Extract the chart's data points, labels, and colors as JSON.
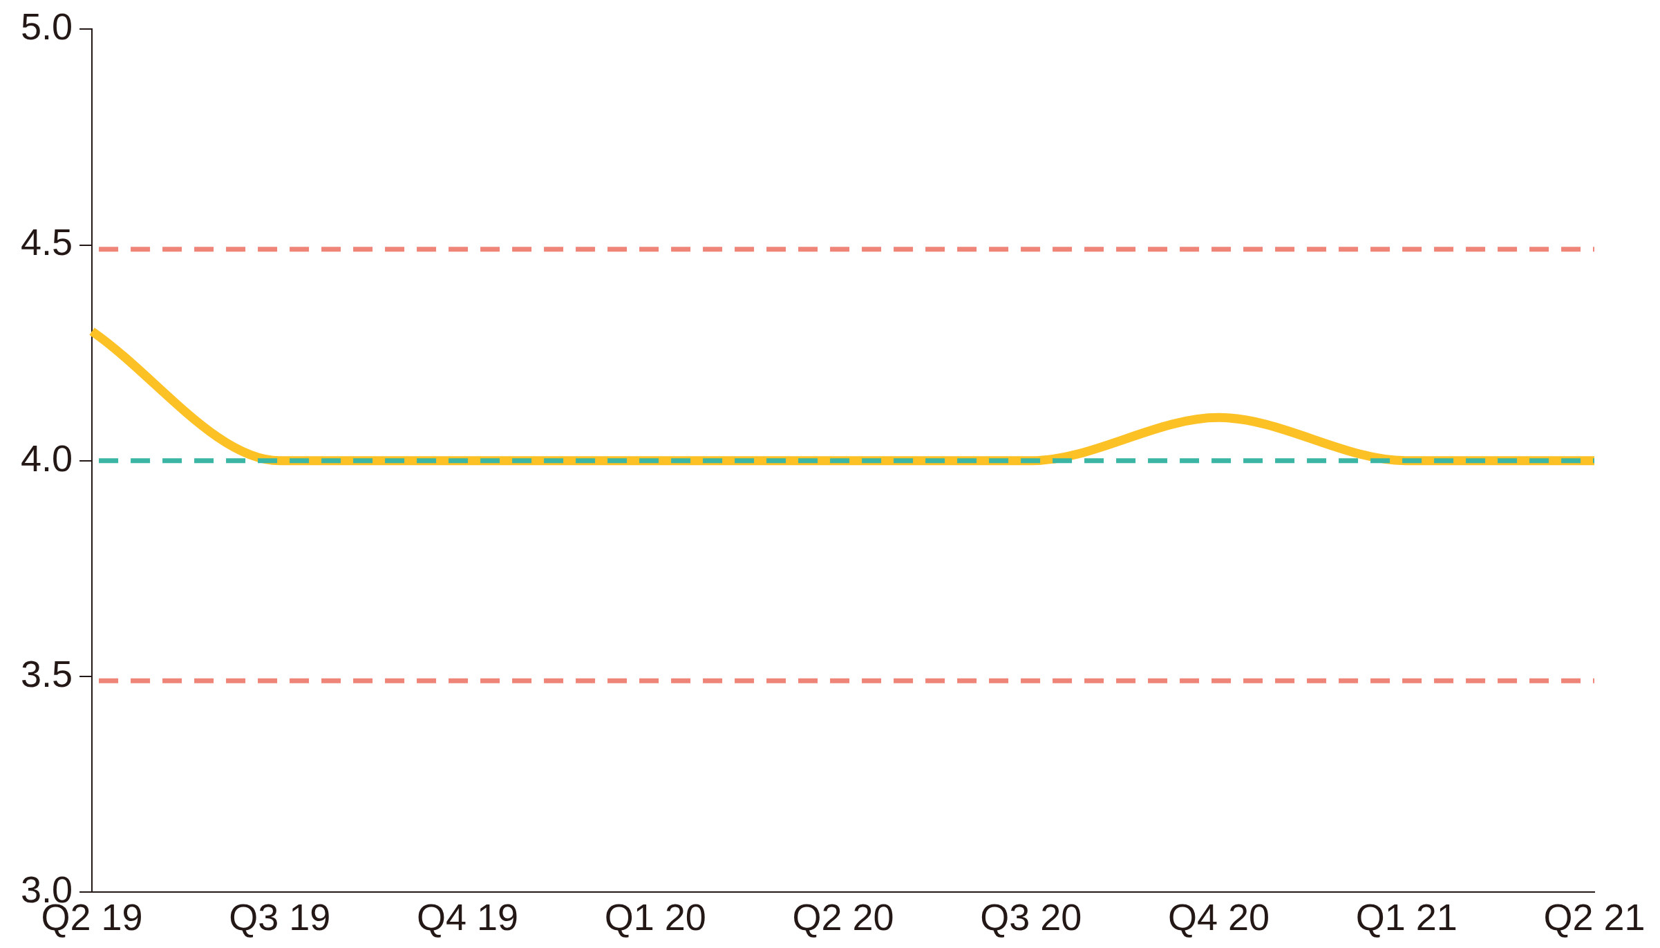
{
  "chart_data": {
    "type": "line",
    "categories": [
      "Q2 19",
      "Q3 19",
      "Q4 19",
      "Q1 20",
      "Q2 20",
      "Q3 20",
      "Q4 20",
      "Q1 21",
      "Q2 21"
    ],
    "series": [
      {
        "color": "#fcc125",
        "values": [
          4.3,
          4.0,
          4.0,
          4.0,
          4.0,
          4.0,
          4.1,
          4.0,
          4.0
        ]
      }
    ],
    "ylim": [
      3,
      5
    ],
    "yticks": [
      {
        "value": 3,
        "label": "3.0"
      },
      {
        "value": 3.5,
        "label": "3.5"
      },
      {
        "value": 4,
        "label": "4.0"
      },
      {
        "value": 4.5,
        "label": "4.5"
      },
      {
        "value": 5,
        "label": "5.0"
      }
    ],
    "ref_lines": [
      {
        "axis": "y",
        "value": 4.49,
        "color": "#ef8478",
        "line_style": "dashed"
      },
      {
        "axis": "y",
        "value": 4.0,
        "color": "#3bb6a4",
        "line_style": "dashed"
      },
      {
        "axis": "y",
        "value": 3.49,
        "color": "#ef8478",
        "line_style": "dashed"
      }
    ],
    "grid": false,
    "legend": false,
    "marker": "none",
    "line_style": "solid"
  }
}
